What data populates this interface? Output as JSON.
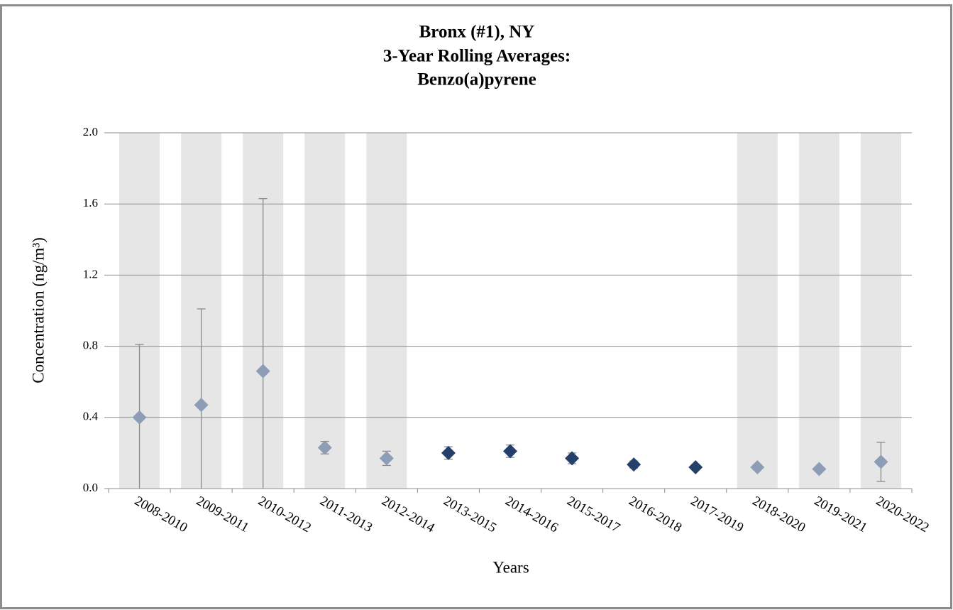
{
  "chart_data": {
    "type": "scatter",
    "title_lines": [
      "Bronx (#1), NY",
      "3-Year Rolling Averages:",
      "Benzo(a)pyrene"
    ],
    "x_label": "Years",
    "y_label": "Concentration (ng/m³)",
    "categories": [
      "2008-2010",
      "2009-2011",
      "2010-2012",
      "2011-2013",
      "2012-2014",
      "2013-2015",
      "2014-2016",
      "2015-2017",
      "2016-2018",
      "2017-2019",
      "2018-2020",
      "2019-2021",
      "2020-2022"
    ],
    "values": [
      0.4,
      0.47,
      0.66,
      0.23,
      0.17,
      0.2,
      0.21,
      0.17,
      0.135,
      0.12,
      0.12,
      0.11,
      0.15
    ],
    "error": [
      0.41,
      0.54,
      0.97,
      0.035,
      0.04,
      0.035,
      0.035,
      0.03,
      0.02,
      0.015,
      0.015,
      0.01,
      0.11
    ],
    "point_colors": [
      "#8e9db6",
      "#8e9db6",
      "#8e9db6",
      "#8e9db6",
      "#8e9db6",
      "#24406b",
      "#24406b",
      "#24406b",
      "#24406b",
      "#24406b",
      "#8e9db6",
      "#8e9db6",
      "#8e9db6"
    ],
    "shaded": [
      true,
      true,
      true,
      true,
      true,
      false,
      false,
      false,
      false,
      false,
      true,
      true,
      true
    ],
    "shade_color": "#e6e6e6",
    "error_color": "#8a8a8a",
    "ylim": [
      0,
      2
    ],
    "yticks": [
      {
        "value": 0,
        "label": "0.0"
      },
      0.4,
      0.8,
      1.2,
      1.6,
      {
        "value": 2,
        "label": "2.0"
      }
    ],
    "grid": true
  }
}
